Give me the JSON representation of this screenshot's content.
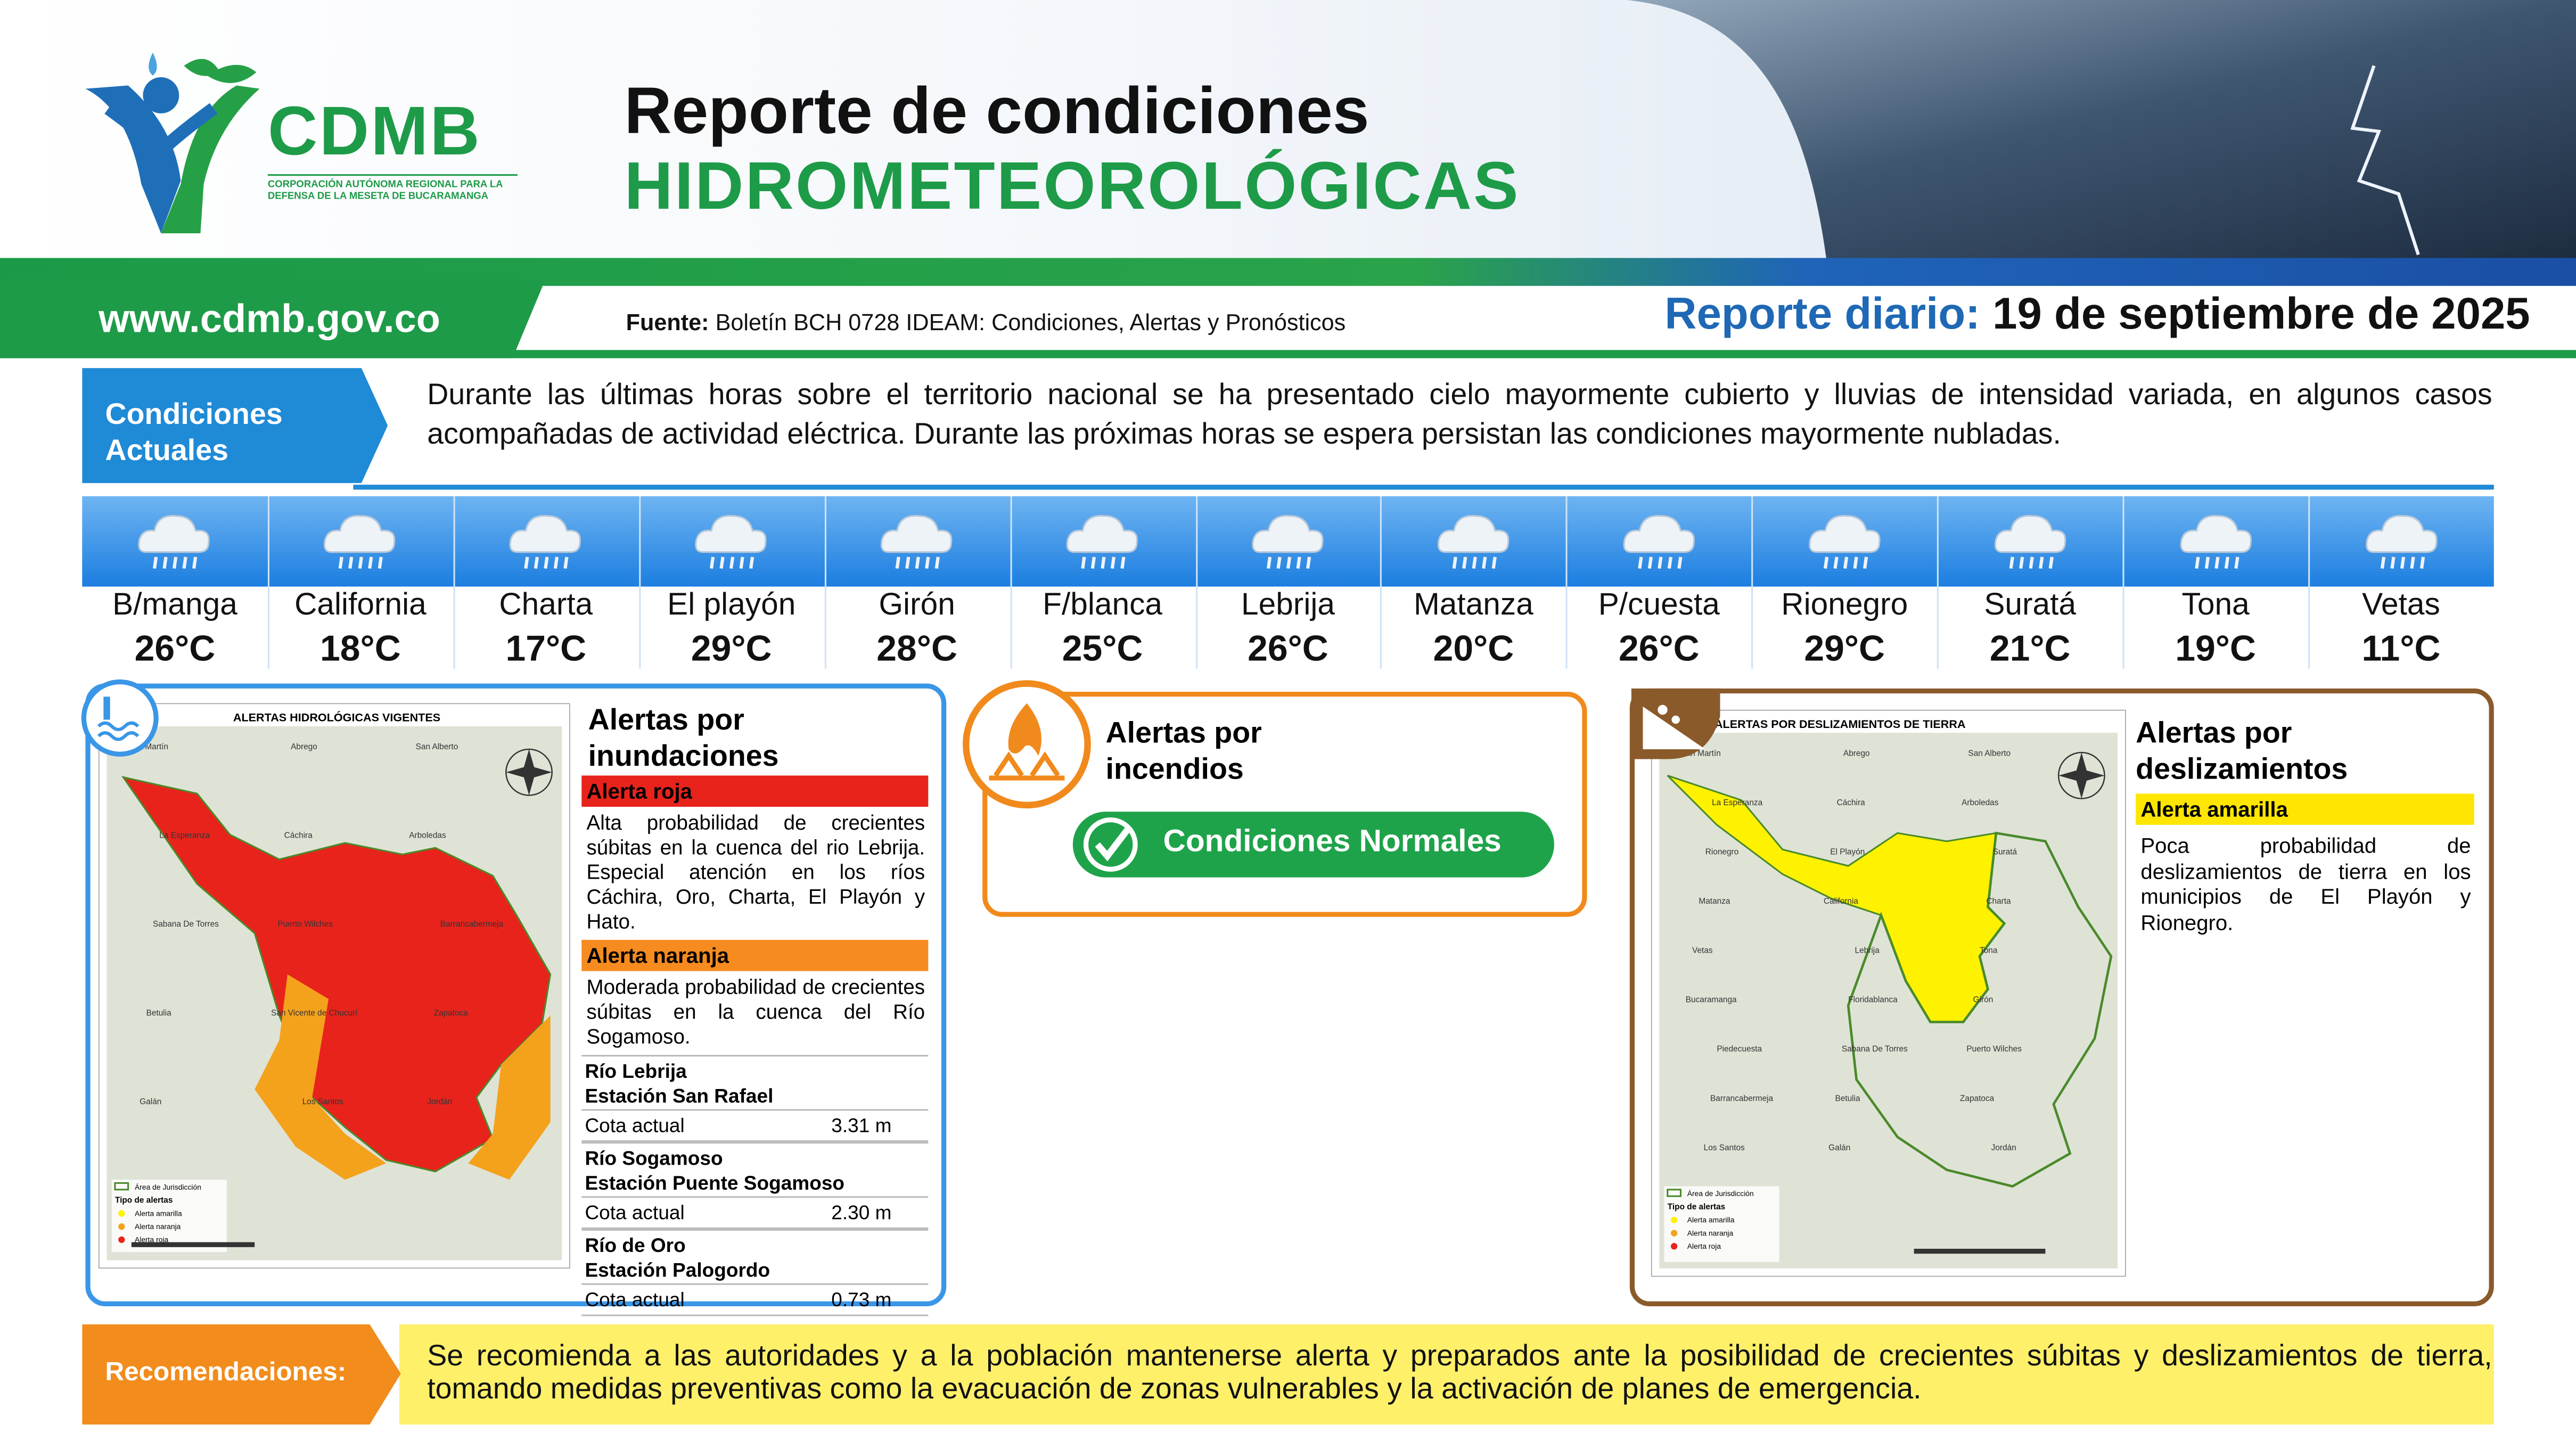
{
  "header": {
    "logo_name": "CDMB",
    "logo_subtitle": [
      "CORPORACIÓN AUTÓNOMA REGIONAL PARA LA",
      "DEFENSA DE LA MESETA DE BUCARAMANGA"
    ],
    "title_line1": "Reporte de condiciones",
    "title_line2": "HIDROMETEOROLÓGICAS",
    "website": "www.cdmb.gov.co",
    "source_label": "Fuente:",
    "source_text": "Boletín BCH 0728 IDEAM: Condiciones, Alertas y Pronósticos",
    "report_label": "Reporte diario:",
    "report_date": "19 de septiembre de 2025"
  },
  "conditions": {
    "label": "Condiciones Actuales",
    "text": "Durante las últimas horas sobre el territorio nacional se ha presentado cielo mayormente cubierto y lluvias de intensidad variada, en algunos casos acompañadas de actividad eléctrica. Durante las próximas horas se espera persistan las condiciones mayormente nubladas."
  },
  "forecast": [
    {
      "name": "B/manga",
      "temp": "26°C"
    },
    {
      "name": "California",
      "temp": "18°C"
    },
    {
      "name": "Charta",
      "temp": "17°C"
    },
    {
      "name": "El playón",
      "temp": "29°C"
    },
    {
      "name": "Girón",
      "temp": "28°C"
    },
    {
      "name": "F/blanca",
      "temp": "25°C"
    },
    {
      "name": "Lebrija",
      "temp": "26°C"
    },
    {
      "name": "Matanza",
      "temp": "20°C"
    },
    {
      "name": "P/cuesta",
      "temp": "26°C"
    },
    {
      "name": "Rionegro",
      "temp": "29°C"
    },
    {
      "name": "Suratá",
      "temp": "21°C"
    },
    {
      "name": "Tona",
      "temp": "19°C"
    },
    {
      "name": "Vetas",
      "temp": "11°C"
    }
  ],
  "floods": {
    "title": "Alertas por inundaciones",
    "map_title": "ALERTAS HIDROLÓGICAS VIGENTES",
    "alerts": [
      {
        "level": "Alerta roja",
        "text": "Alta probabilidad de crecientes súbitas en la cuenca del rio Lebrija. Especial atención en los ríos Cáchira, Oro, Charta, El Playón y Hato."
      },
      {
        "level": "Alerta naranja",
        "text": "Moderada probabilidad de crecientes súbitas en la cuenca del Río Sogamoso."
      }
    ],
    "stations": [
      {
        "river": "Río Lebrija",
        "station": "Estación San Rafael",
        "label": "Cota actual",
        "value": "3.31 m"
      },
      {
        "river": "Río Sogamoso",
        "station": "Estación Puente Sogamoso",
        "label": "Cota actual",
        "value": "2.30 m"
      },
      {
        "river": "Río de Oro",
        "station": "Estación Palogordo",
        "label": "Cota actual",
        "value": "0.73 m"
      }
    ],
    "map_places": [
      "San Martín",
      "Abrego",
      "San Alberto",
      "La Esperanza",
      "Cáchira",
      "Arboledas",
      "Sabana De Torres",
      "Puerto Wilches",
      "Barrancabermeja",
      "Betulia",
      "San Vicente de Chucurí",
      "Zapatoca",
      "Galán",
      "Los Santos",
      "Jordán"
    ],
    "map_legend": [
      "Área de Jurisdicción",
      "Tipo de alertas",
      "Alerta amarilla",
      "Alerta naranja",
      "Alerta roja"
    ]
  },
  "fires": {
    "title": "Alertas por incendios",
    "status": "Condiciones Normales"
  },
  "landslides": {
    "title": "Alertas por deslizamientos",
    "map_title": "ALERTAS POR DESLIZAMIENTOS DE TIERRA",
    "level": "Alerta amarilla",
    "text": "Poca probabilidad de deslizamientos de tierra en los municipios de El Playón y Rionegro.",
    "map_places": [
      "San Martín",
      "Abrego",
      "San Alberto",
      "La Esperanza",
      "Cáchira",
      "Arboledas",
      "Rionegro",
      "El Playón",
      "Suratá",
      "Matanza",
      "California",
      "Charta",
      "Vetas",
      "Lebrija",
      "Tona",
      "Bucaramanga",
      "Floridablanca",
      "Girón",
      "Piedecuesta",
      "Sabana De Torres",
      "Puerto Wilches",
      "Barrancabermeja",
      "Betulia",
      "Zapatoca",
      "Los Santos",
      "Galán",
      "Jordán"
    ],
    "map_legend": [
      "Área de Jurisdicción",
      "Tipo de alertas",
      "Alerta amarilla",
      "Alerta naranja",
      "Alerta roja"
    ]
  },
  "recommendations": {
    "label": "Recomendaciones:",
    "text": "Se recomienda a las autoridades y a la población mantenerse alerta y preparados ante la posibilidad de crecientes súbitas y deslizamientos de tierra, tomando medidas preventivas como la evacuación de zonas vulnerables y la activación de planes de emergencia."
  }
}
